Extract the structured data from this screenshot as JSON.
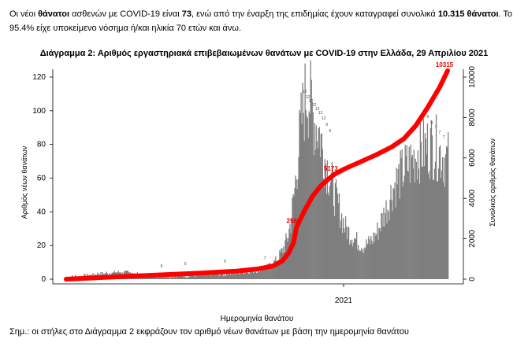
{
  "intro": {
    "p1": "Οι νέοι ",
    "p2": "θάνατοι",
    "p3": " ασθενών με COVID-19 είναι ",
    "p4": "73",
    "p5": ", ενώ από την έναρξη της επιδημίας έχουν καταγραφεί συνολικά ",
    "p6": "10.315 θάνατοι",
    "p7": ".  Το 95.4% είχε υποκείμενο νόσημα ή/και ηλικία 70 ετών και άνω."
  },
  "note": "Σημ.: οι στήλες στο Διάγραμμα 2 εκφράζουν τον αριθμό νέων θανάτων με βάση την ημερομηνία θανάτου",
  "chart_data": {
    "type": "bar+line",
    "title": "Διάγραμμα 2: Αριθμός εργαστηριακά επιβεβαιωμένων θανάτων με COVID-19 στην Ελλάδα, 29 Απριλίου 2021",
    "xlabel": "Ημερομηνία θανάτου",
    "ylabel_left": "Αριθμός νέων θανάτων",
    "ylabel_right": "Συνολικός αριθμός θανάτων",
    "x_tick_label": "2021",
    "ylim_left": [
      0,
      125
    ],
    "yticks_left": [
      "0",
      "20",
      "40",
      "60",
      "80",
      "100",
      "120"
    ],
    "ylim_right": [
      0,
      10500
    ],
    "yticks_right": [
      "0",
      "2000",
      "4000",
      "6000",
      "8000",
      "10000"
    ],
    "bar_color": "#7f7f7f",
    "line_color": "#ff0000",
    "annotations": [
      {
        "label": "2581",
        "index": 290,
        "value": 2581
      },
      {
        "label": "5173",
        "index": 337,
        "value": 5173
      },
      {
        "label": "10315",
        "index": 480,
        "value": 10315
      }
    ],
    "bar_profile": [
      [
        0,
        0
      ],
      [
        20,
        1
      ],
      [
        40,
        2
      ],
      [
        60,
        3
      ],
      [
        80,
        3
      ],
      [
        100,
        1
      ],
      [
        120,
        1
      ],
      [
        140,
        1
      ],
      [
        160,
        1
      ],
      [
        180,
        2
      ],
      [
        200,
        2
      ],
      [
        220,
        4
      ],
      [
        240,
        5
      ],
      [
        255,
        8
      ],
      [
        265,
        12
      ],
      [
        272,
        18
      ],
      [
        278,
        25
      ],
      [
        282,
        35
      ],
      [
        286,
        50
      ],
      [
        290,
        70
      ],
      [
        294,
        90
      ],
      [
        298,
        105
      ],
      [
        302,
        115
      ],
      [
        306,
        110
      ],
      [
        310,
        100
      ],
      [
        314,
        95
      ],
      [
        318,
        90
      ],
      [
        322,
        80
      ],
      [
        326,
        72
      ],
      [
        330,
        65
      ],
      [
        334,
        58
      ],
      [
        338,
        50
      ],
      [
        342,
        45
      ],
      [
        346,
        38
      ],
      [
        350,
        32
      ],
      [
        356,
        28
      ],
      [
        362,
        25
      ],
      [
        368,
        22
      ],
      [
        374,
        20
      ],
      [
        380,
        22
      ],
      [
        386,
        25
      ],
      [
        392,
        30
      ],
      [
        398,
        38
      ],
      [
        404,
        45
      ],
      [
        410,
        55
      ],
      [
        418,
        62
      ],
      [
        426,
        68
      ],
      [
        434,
        72
      ],
      [
        442,
        78
      ],
      [
        450,
        80
      ],
      [
        458,
        82
      ],
      [
        466,
        80
      ],
      [
        474,
        75
      ],
      [
        480,
        73
      ]
    ],
    "cumulative_profile": [
      [
        0,
        0
      ],
      [
        100,
        180
      ],
      [
        170,
        300
      ],
      [
        215,
        400
      ],
      [
        240,
        500
      ],
      [
        260,
        650
      ],
      [
        272,
        900
      ],
      [
        280,
        1300
      ],
      [
        286,
        1800
      ],
      [
        290,
        2581
      ],
      [
        300,
        3400
      ],
      [
        310,
        4100
      ],
      [
        320,
        4600
      ],
      [
        330,
        4950
      ],
      [
        337,
        5173
      ],
      [
        350,
        5450
      ],
      [
        370,
        5800
      ],
      [
        390,
        6150
      ],
      [
        410,
        6550
      ],
      [
        425,
        6950
      ],
      [
        440,
        7600
      ],
      [
        455,
        8500
      ],
      [
        470,
        9500
      ],
      [
        480,
        10315
      ]
    ]
  },
  "tiny_labels": [
    "12",
    "12",
    "12",
    "12",
    "12",
    "12",
    "12",
    "9",
    "9",
    "9",
    "9",
    "7",
    "7",
    "7",
    "7",
    "6",
    "6",
    "6"
  ]
}
